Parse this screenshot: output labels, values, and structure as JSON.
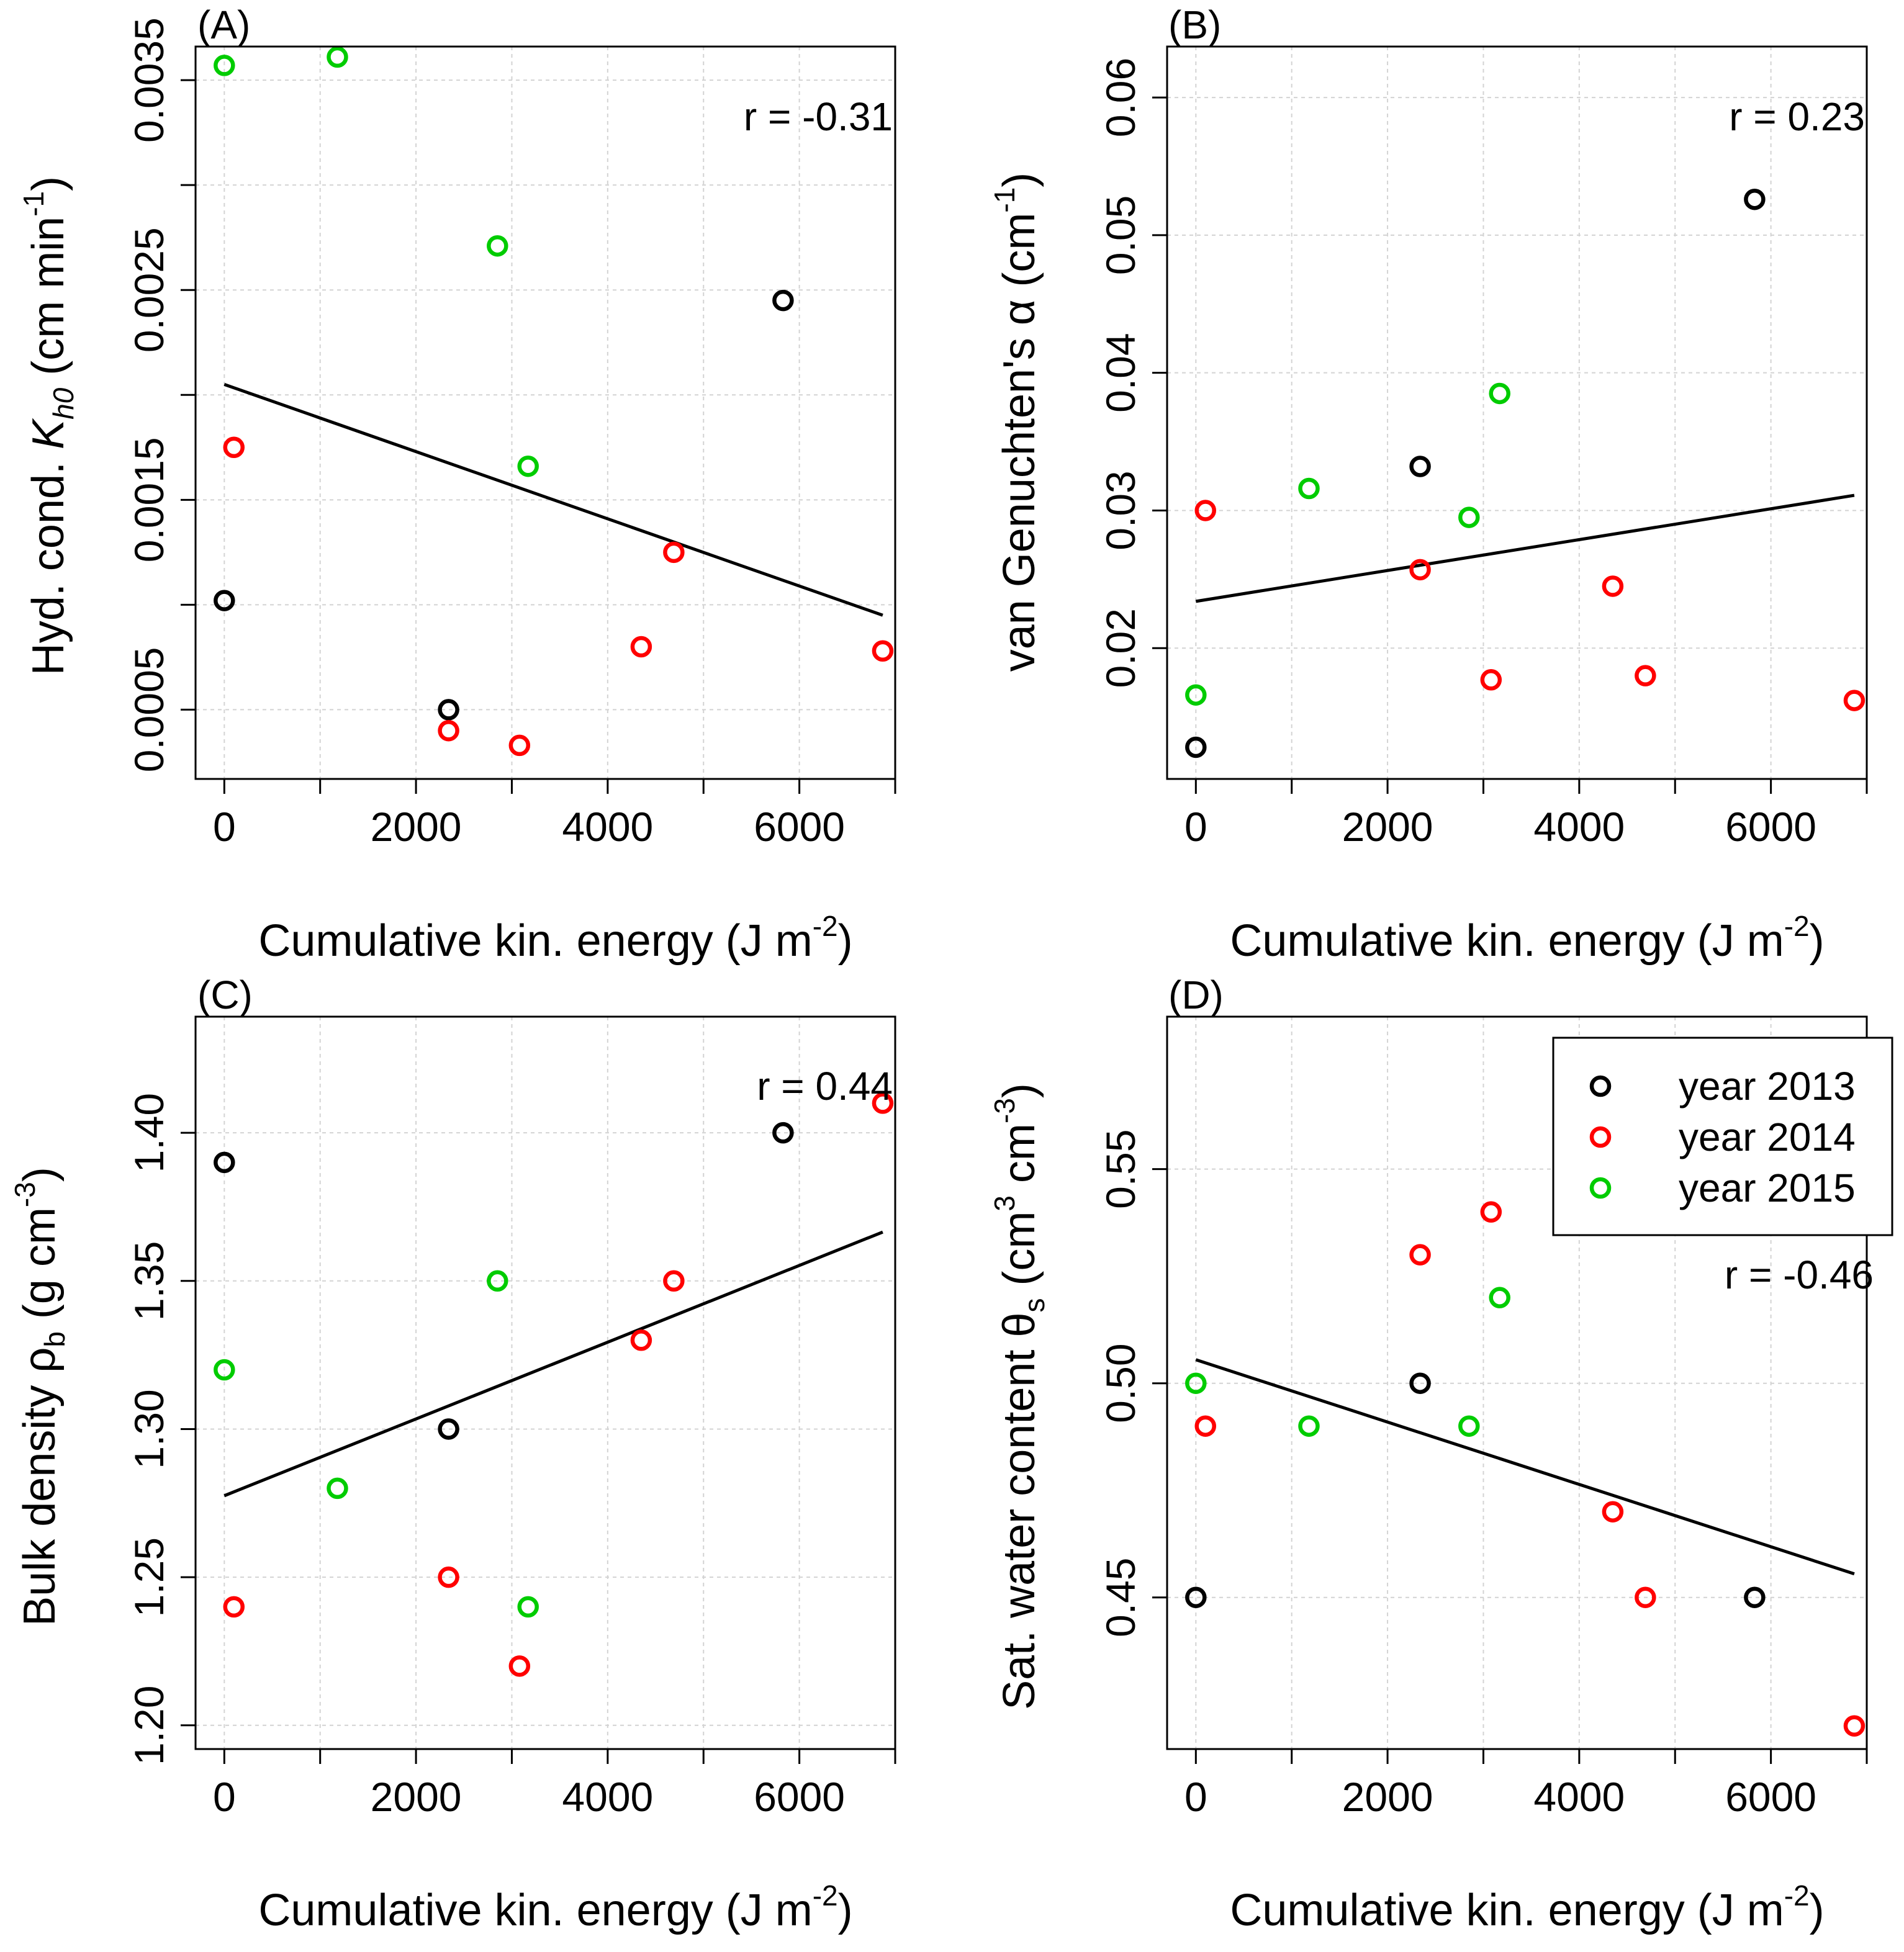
{
  "colors": {
    "2013": "#000000",
    "2014": "#ff0000",
    "2015": "#00cc00",
    "grid": "#d3d3d3",
    "axis": "#000000"
  },
  "legend": {
    "entries": [
      {
        "year": "2013",
        "label": "year 2013"
      },
      {
        "year": "2014",
        "label": "year 2014"
      },
      {
        "year": "2015",
        "label": "year 2015"
      }
    ]
  },
  "chart_data": [
    {
      "type": "scatter",
      "panel": "(A)",
      "title": "",
      "xlabel": "Cumulative kin. energy (J m-2)",
      "ylabel": "Hyd. cond. Kh0 (cm min-1)",
      "ylabel_parts": {
        "main": "Hyd. cond. ",
        "italic": "K",
        "sub": "h0",
        "unit_pre": " (cm min",
        "sup": "-1",
        "unit_post": ")"
      },
      "xlabel_parts": {
        "main": "Cumulative kin. energy (J m",
        "sup": "-2",
        "post": ")"
      },
      "xlim": [
        -300,
        7000
      ],
      "ylim": [
        0.00017,
        0.00366
      ],
      "xticks": [
        0,
        2000,
        4000,
        6000
      ],
      "xtick_labels": [
        "0",
        "2000",
        "4000",
        "6000"
      ],
      "xgrid": [
        0,
        1000,
        2000,
        3000,
        4000,
        5000,
        6000,
        7000
      ],
      "yticks": [
        0.0005,
        0.0015,
        0.0025,
        0.0035
      ],
      "ytick_labels": [
        "0.0005",
        "0.0015",
        "0.0025",
        "0.0035"
      ],
      "ygrid": [
        0.0005,
        0.001,
        0.0015,
        0.002,
        0.0025,
        0.003,
        0.0035
      ],
      "r_label": "r =  -0.31",
      "r_pos": "top-right",
      "fit": {
        "x0": 0,
        "y0": 0.00205,
        "x1": 6870,
        "y1": 0.00095
      },
      "series": [
        {
          "name": "year 2013",
          "year": "2013",
          "points": [
            [
              0,
              0.00102
            ],
            [
              2340,
              0.0005
            ],
            [
              5830,
              0.00245
            ]
          ]
        },
        {
          "name": "year 2014",
          "year": "2014",
          "points": [
            [
              100,
              0.00175
            ],
            [
              2340,
              0.0004
            ],
            [
              3080,
              0.00033
            ],
            [
              4350,
              0.0008
            ],
            [
              4690,
              0.00125
            ],
            [
              6870,
              0.00078
            ]
          ]
        },
        {
          "name": "year 2015",
          "year": "2015",
          "points": [
            [
              0,
              0.00357
            ],
            [
              1180,
              0.00361
            ],
            [
              2850,
              0.00271
            ],
            [
              3170,
              0.00166
            ]
          ]
        }
      ]
    },
    {
      "type": "scatter",
      "panel": "(B)",
      "title": "",
      "xlabel": "Cumulative kin. energy (J m-2)",
      "ylabel": "van Genuchten's α (cm-1)",
      "ylabel_parts": {
        "main": "van Genuchten's α (cm",
        "sup": "-1",
        "post": ")"
      },
      "xlabel_parts": {
        "main": "Cumulative kin. energy (J m",
        "sup": "-2",
        "post": ")"
      },
      "xlim": [
        -300,
        7000
      ],
      "ylim": [
        0.0105,
        0.0637
      ],
      "xticks": [
        0,
        2000,
        4000,
        6000
      ],
      "xtick_labels": [
        "0",
        "2000",
        "4000",
        "6000"
      ],
      "xgrid": [
        0,
        1000,
        2000,
        3000,
        4000,
        5000,
        6000,
        7000
      ],
      "yticks": [
        0.02,
        0.03,
        0.04,
        0.05,
        0.06
      ],
      "ytick_labels": [
        "0.02",
        "0.03",
        "0.04",
        "0.05",
        "0.06"
      ],
      "ygrid": [
        0.02,
        0.03,
        0.04,
        0.05,
        0.06
      ],
      "r_label": "r =  0.23",
      "r_pos": "top-right",
      "fit": {
        "x0": 0,
        "y0": 0.0234,
        "x1": 6870,
        "y1": 0.0311
      },
      "series": [
        {
          "name": "year 2013",
          "year": "2013",
          "points": [
            [
              0,
              0.0128
            ],
            [
              2340,
              0.0332
            ],
            [
              5830,
              0.0526
            ]
          ]
        },
        {
          "name": "year 2014",
          "year": "2014",
          "points": [
            [
              100,
              0.03
            ],
            [
              2340,
              0.0257
            ],
            [
              3080,
              0.0177
            ],
            [
              4350,
              0.0245
            ],
            [
              4690,
              0.018
            ],
            [
              6870,
              0.0162
            ]
          ]
        },
        {
          "name": "year 2015",
          "year": "2015",
          "points": [
            [
              0,
              0.0166
            ],
            [
              1180,
              0.0316
            ],
            [
              2850,
              0.0295
            ],
            [
              3170,
              0.0385
            ]
          ]
        }
      ]
    },
    {
      "type": "scatter",
      "panel": "(C)",
      "title": "",
      "xlabel": "Cumulative kin. energy (J m-2)",
      "ylabel": "Bulk density ρb (g cm-3)",
      "ylabel_parts": {
        "main": "Bulk density ρ",
        "sub": "b",
        "unit_pre": " (g cm",
        "sup": "-3",
        "unit_post": ")"
      },
      "xlabel_parts": {
        "main": "Cumulative kin. energy (J m",
        "sup": "-2",
        "post": ")"
      },
      "xlim": [
        -300,
        7000
      ],
      "ylim": [
        1.192,
        1.4392
      ],
      "xticks": [
        0,
        2000,
        4000,
        6000
      ],
      "xtick_labels": [
        "0",
        "2000",
        "4000",
        "6000"
      ],
      "xgrid": [
        0,
        1000,
        2000,
        3000,
        4000,
        5000,
        6000,
        7000
      ],
      "yticks": [
        1.2,
        1.25,
        1.3,
        1.35,
        1.4
      ],
      "ytick_labels": [
        "1.20",
        "1.25",
        "1.30",
        "1.35",
        "1.40"
      ],
      "ygrid": [
        1.2,
        1.25,
        1.3,
        1.35,
        1.4
      ],
      "r_label": "r =  0.44",
      "r_pos": "top-right",
      "fit": {
        "x0": 0,
        "y0": 1.2775,
        "x1": 6870,
        "y1": 1.3665
      },
      "series": [
        {
          "name": "year 2013",
          "year": "2013",
          "points": [
            [
              0,
              1.39
            ],
            [
              2340,
              1.3
            ],
            [
              5830,
              1.4
            ]
          ]
        },
        {
          "name": "year 2014",
          "year": "2014",
          "points": [
            [
              100,
              1.24
            ],
            [
              2340,
              1.25
            ],
            [
              3080,
              1.22
            ],
            [
              4350,
              1.33
            ],
            [
              4690,
              1.35
            ],
            [
              6870,
              1.41
            ]
          ]
        },
        {
          "name": "year 2015",
          "year": "2015",
          "points": [
            [
              0,
              1.32
            ],
            [
              1180,
              1.28
            ],
            [
              2850,
              1.35
            ],
            [
              3170,
              1.24
            ]
          ]
        }
      ]
    },
    {
      "type": "scatter",
      "panel": "(D)",
      "title": "",
      "xlabel": "Cumulative kin. energy (J m-2)",
      "ylabel": "Sat. water content θs (cm3 cm-3)",
      "ylabel_parts": {
        "main": "Sat. water content θ",
        "sub": "s",
        "unit_pre": " (cm",
        "sup1": "3",
        "mid": " cm",
        "sup2": "-3",
        "unit_post": ")"
      },
      "xlabel_parts": {
        "main": "Cumulative kin. energy (J m",
        "sup": "-2",
        "post": ")"
      },
      "xlim": [
        -300,
        7000
      ],
      "ylim": [
        0.4146,
        0.5856
      ],
      "xticks": [
        0,
        2000,
        4000,
        6000
      ],
      "xtick_labels": [
        "0",
        "2000",
        "4000",
        "6000"
      ],
      "xgrid": [
        0,
        1000,
        2000,
        3000,
        4000,
        5000,
        6000,
        7000
      ],
      "yticks": [
        0.45,
        0.5,
        0.55
      ],
      "ytick_labels": [
        "0.45",
        "0.50",
        "0.55"
      ],
      "ygrid": [
        0.45,
        0.5,
        0.55
      ],
      "r_label": "r =  -0.46",
      "r_pos": "right",
      "legend": "top-right",
      "fit": {
        "x0": 0,
        "y0": 0.5055,
        "x1": 6870,
        "y1": 0.4555
      },
      "series": [
        {
          "name": "year 2013",
          "year": "2013",
          "points": [
            [
              0,
              0.45
            ],
            [
              2340,
              0.5
            ],
            [
              5830,
              0.45
            ]
          ]
        },
        {
          "name": "year 2014",
          "year": "2014",
          "points": [
            [
              100,
              0.49
            ],
            [
              2340,
              0.53
            ],
            [
              3080,
              0.54
            ],
            [
              4350,
              0.47
            ],
            [
              4690,
              0.45
            ],
            [
              6870,
              0.42
            ]
          ]
        },
        {
          "name": "year 2015",
          "year": "2015",
          "points": [
            [
              0,
              0.5
            ],
            [
              1180,
              0.49
            ],
            [
              2850,
              0.49
            ],
            [
              3170,
              0.52
            ]
          ]
        }
      ]
    }
  ]
}
